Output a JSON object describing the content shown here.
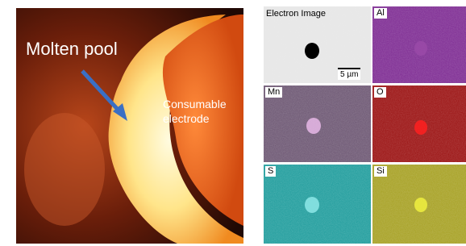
{
  "photo": {
    "molten_pool": "Molten pool",
    "electrode": "Consumable electrode"
  },
  "maps": [
    {
      "label": "Electron Image",
      "scale_bar": "5 µm"
    },
    {
      "label": "Al"
    },
    {
      "label": "Mn"
    },
    {
      "label": "O"
    },
    {
      "label": "S"
    },
    {
      "label": "Si"
    }
  ]
}
